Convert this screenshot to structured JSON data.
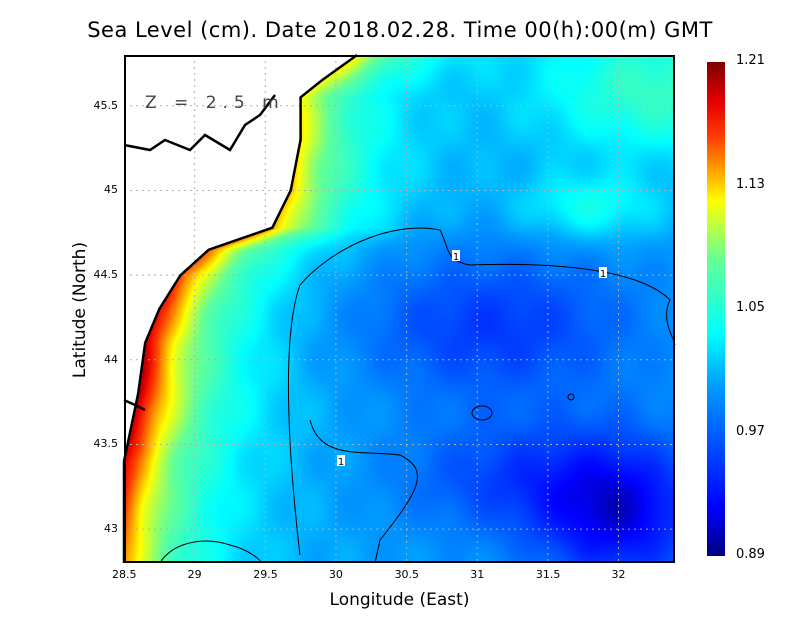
{
  "chart_data": {
    "type": "heatmap",
    "title": "Sea Level (cm). Date 2018.02.28. Time 00(h):00(m) GMT",
    "xlabel": "Longitude (East)",
    "ylabel": "Latitude (North)",
    "annotation": "Z = 2.5 m",
    "xlim": [
      28.5,
      32.4
    ],
    "ylim": [
      42.8,
      45.8
    ],
    "xticks": [
      "28.5",
      "29",
      "29.5",
      "30",
      "30.5",
      "31",
      "31.5",
      "32"
    ],
    "yticks": [
      "43",
      "43.5",
      "44",
      "44.5",
      "45",
      "45.5"
    ],
    "grid": true,
    "colorbar": {
      "min": 0.89,
      "max": 1.21,
      "ticks": [
        "1.21",
        "1.13",
        "1.05",
        "0.97",
        "0.89"
      ]
    },
    "contour_level": 1,
    "contour_labels": [
      "1",
      "1",
      "1"
    ],
    "field_description_points": [
      {
        "lon": 28.6,
        "lat": 43.8,
        "value": 1.2
      },
      {
        "lon": 29.3,
        "lat": 44.5,
        "value": 1.12
      },
      {
        "lon": 30.0,
        "lat": 45.0,
        "value": 1.02
      },
      {
        "lon": 31.0,
        "lat": 44.2,
        "value": 0.95
      },
      {
        "lon": 31.9,
        "lat": 43.1,
        "value": 0.9
      },
      {
        "lon": 32.2,
        "lat": 45.6,
        "value": 1.07
      },
      {
        "lon": 30.0,
        "lat": 43.0,
        "value": 1.0
      }
    ]
  },
  "colors": {
    "land": "#ffffff",
    "coast": "#000000",
    "grid": "#b0b0b0"
  }
}
